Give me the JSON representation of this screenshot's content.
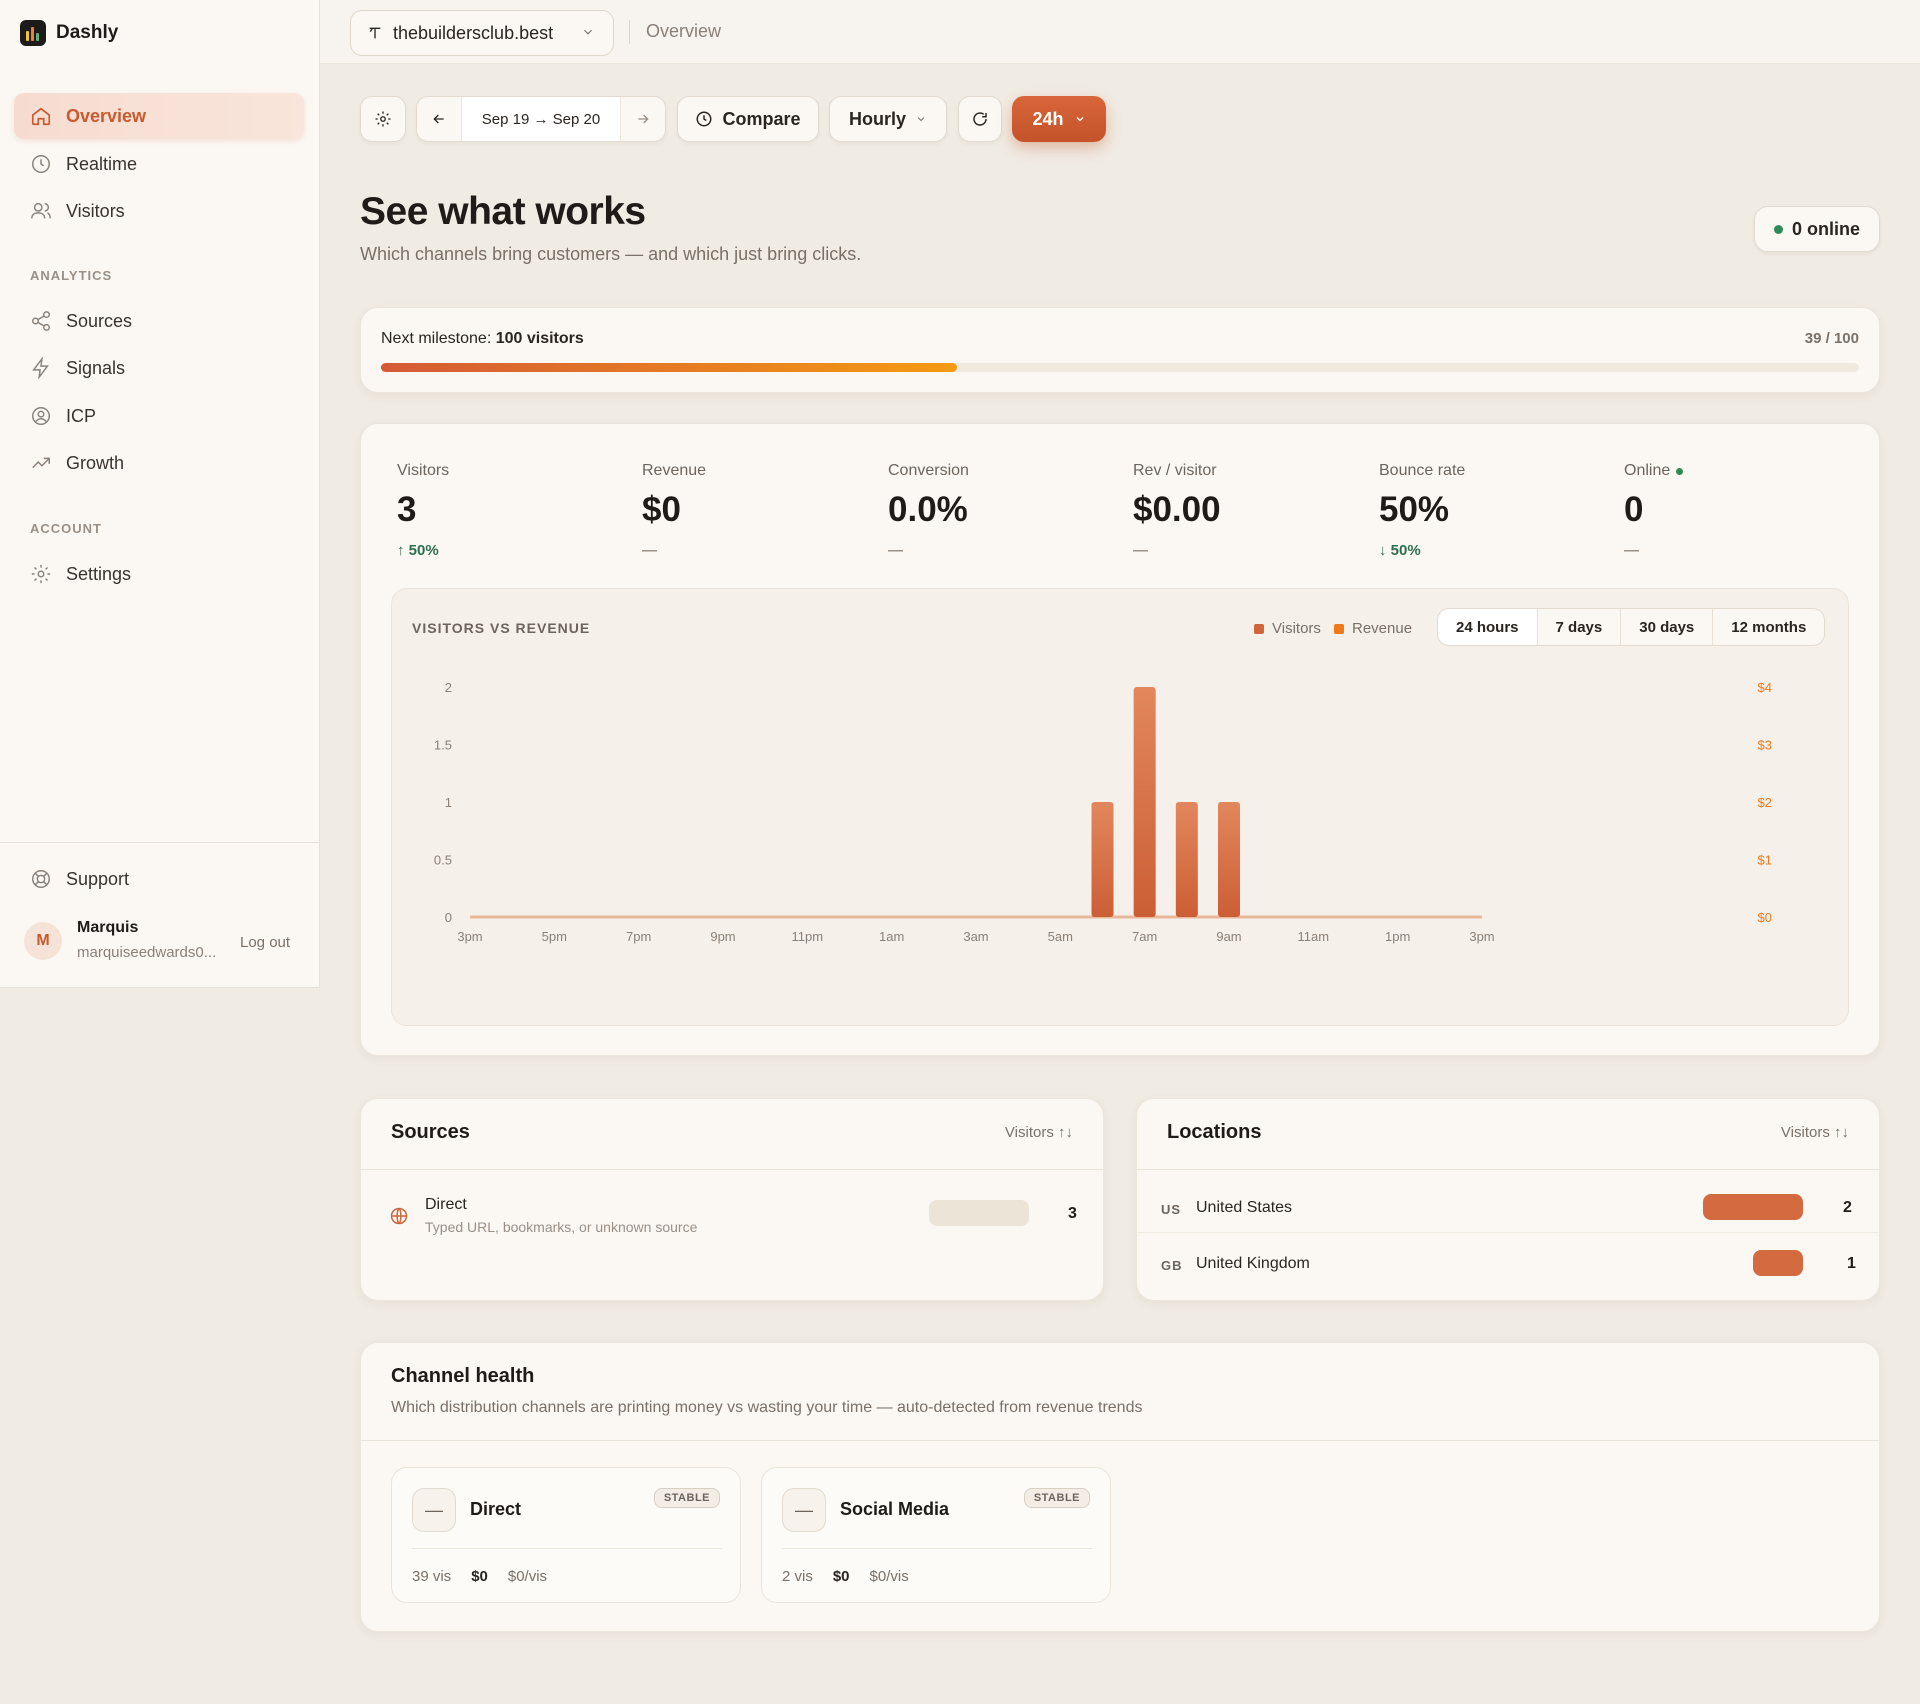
{
  "app": {
    "name": "Dashly"
  },
  "sidebar": {
    "items": [
      {
        "label": "Overview",
        "icon": "home-icon",
        "active": true
      },
      {
        "label": "Realtime",
        "icon": "clock-icon"
      },
      {
        "label": "Visitors",
        "icon": "users-icon"
      }
    ],
    "analytics_heading": "ANALYTICS",
    "analytics_items": [
      {
        "label": "Sources",
        "icon": "share-icon"
      },
      {
        "label": "Signals",
        "icon": "bolt-icon"
      },
      {
        "label": "ICP",
        "icon": "target-user-icon"
      },
      {
        "label": "Growth",
        "icon": "trend-icon"
      }
    ],
    "account_heading": "ACCOUNT",
    "account_items": [
      {
        "label": "Settings",
        "icon": "gear-icon"
      }
    ],
    "support_label": "Support",
    "user": {
      "initial": "M",
      "name": "Marquis",
      "email": "marquiseedwards0...",
      "logout_label": "Log out"
    }
  },
  "topbar": {
    "site": "thebuildersclub.best",
    "breadcrumb": "Overview"
  },
  "toolbar": {
    "date_range": "Sep 19 → Sep 20",
    "compare_label": "Compare",
    "interval_label": "Hourly",
    "period_label": "24h"
  },
  "hero": {
    "title": "See what works",
    "subtitle": "Which channels bring customers — and which just bring clicks.",
    "online_label": "0 online"
  },
  "milestone": {
    "label_prefix": "Next milestone:",
    "label_value": "100 visitors",
    "count": "39 / 100",
    "progress": 0.39
  },
  "stats": [
    {
      "label": "Visitors",
      "value": "3",
      "delta": "↑ 50%",
      "trend": "up"
    },
    {
      "label": "Revenue",
      "value": "$0",
      "delta": "—",
      "trend": "none"
    },
    {
      "label": "Conversion",
      "value": "0.0%",
      "delta": "—",
      "trend": "none"
    },
    {
      "label": "Rev / visitor",
      "value": "$0.00",
      "delta": "—",
      "trend": "none"
    },
    {
      "label": "Bounce rate",
      "value": "50%",
      "delta": "↓ 50%",
      "trend": "down"
    },
    {
      "label": "Online",
      "value": "0",
      "delta": "—",
      "trend": "none",
      "live": true
    }
  ],
  "chart": {
    "title": "VISITORS VS REVENUE",
    "legend": [
      {
        "label": "Visitors",
        "color": "#d0643a"
      },
      {
        "label": "Revenue",
        "color": "#f07a1a"
      }
    ],
    "ranges": [
      "24 hours",
      "7 days",
      "30 days",
      "12 months"
    ],
    "active_range": "24 hours"
  },
  "chart_data": {
    "type": "bar",
    "title": "VISITORS VS REVENUE",
    "x": [
      "3pm",
      "4pm",
      "5pm",
      "6pm",
      "7pm",
      "8pm",
      "9pm",
      "10pm",
      "11pm",
      "12am",
      "1am",
      "2am",
      "3am",
      "4am",
      "5am",
      "6am",
      "7am",
      "8am",
      "9am",
      "10am",
      "11am",
      "12pm",
      "1pm",
      "2pm",
      "3pm"
    ],
    "x_tick_labels": [
      "3pm",
      "5pm",
      "7pm",
      "9pm",
      "11pm",
      "1am",
      "3am",
      "5am",
      "7am",
      "9am",
      "11am",
      "1pm",
      "3pm"
    ],
    "series": [
      {
        "name": "Visitors",
        "axis": "left",
        "values": [
          0,
          0,
          0,
          0,
          0,
          0,
          0,
          0,
          0,
          0,
          0,
          0,
          0,
          0,
          0,
          1,
          2,
          1,
          1,
          0,
          0,
          0,
          0,
          0,
          0
        ]
      },
      {
        "name": "Revenue",
        "axis": "right",
        "values": [
          0,
          0,
          0,
          0,
          0,
          0,
          0,
          0,
          0,
          0,
          0,
          0,
          0,
          0,
          0,
          0,
          0,
          0,
          0,
          0,
          0,
          0,
          0,
          0,
          0
        ]
      }
    ],
    "ylim": [
      0,
      2
    ],
    "y_ticks": [
      "0",
      "0.5",
      "1",
      "1.5",
      "2"
    ],
    "y2lim": [
      0,
      4
    ],
    "y2_ticks": [
      "$0",
      "$1",
      "$2",
      "$3",
      "$4"
    ],
    "legend_position": "top-right",
    "grid": false
  },
  "sources": {
    "title": "Sources",
    "sort_label": "Visitors ↑↓",
    "rows": [
      {
        "name": "Direct",
        "sub": "Typed URL, bookmarks, or unknown source",
        "count": "3",
        "share": 1.0
      }
    ]
  },
  "locations": {
    "title": "Locations",
    "sort_label": "Visitors ↑↓",
    "rows": [
      {
        "code": "US",
        "name": "United States",
        "count": "2",
        "share": 1.0
      },
      {
        "code": "GB",
        "name": "United Kingdom",
        "count": "1",
        "share": 0.5
      }
    ]
  },
  "channel_health": {
    "title": "Channel health",
    "subtitle": "Which distribution channels are printing money vs wasting your time — auto-detected from revenue trends",
    "cards": [
      {
        "name": "Direct",
        "badge": "STABLE",
        "icon": "—",
        "visits": "39 vis",
        "revenue": "$0",
        "per_visit": "$0/vis"
      },
      {
        "name": "Social Media",
        "badge": "STABLE",
        "icon": "—",
        "visits": "2 vis",
        "revenue": "$0",
        "per_visit": "$0/vis"
      }
    ]
  },
  "colors": {
    "accent": "#c75a2e",
    "bar": "#d36a40",
    "online": "#2f8a5a",
    "background": "#f0ebe3"
  }
}
